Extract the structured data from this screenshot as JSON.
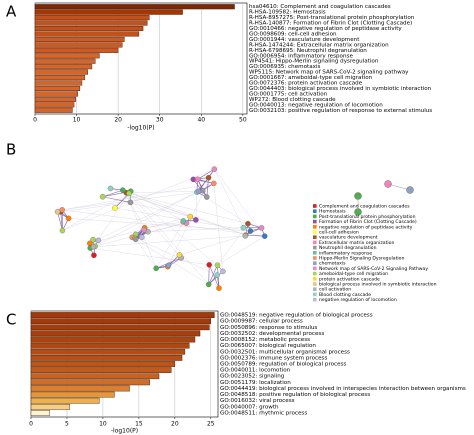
{
  "chart_data": [
    {
      "type": "bar",
      "panel_label": "A",
      "xlabel": "-log10(P)",
      "xlim": [
        0,
        51
      ],
      "xticks": [
        0,
        10,
        20,
        30,
        40,
        50
      ],
      "grid": true,
      "categories": [
        "hsa04610: Complement and coagulation cascades",
        "R-HSA-109582: Hemostasis",
        "R-HSA-8957275: Post-translational protein phosphorylation",
        "R-HSA-140877: Formation of Fibrin Clot (Clotting Cascade)",
        "GO:0010466: negative regulation of peptidase activity",
        "GO:0098609: cell-cell adhesion",
        "GO:0001944: vasculature development",
        "R-HSA-1474244: Extracellular matrix organization",
        "R-HSA-6798695: Neutrophil degranulation",
        "GO:0006954: inflammatory response",
        "WP4541: Hippo-Merlin signaling dysregulation",
        "GO:0006935: chemotaxis",
        "WP5115: Network map of SARS-CoV-2 signaling pathway",
        "GO:0001667: ameboidal-type cell migration",
        "GO:0072376: protein activation cascade",
        "GO:0044403: biological process involved in symbiotic interaction",
        "GO:0001775: cell activation",
        "WP272: Blood clotting cascade",
        "GO:0040013: negative regulation of locomotion",
        "GO:0032103: positive regulation of response to external stimulus"
      ],
      "values": [
        48,
        35.5,
        27.5,
        27,
        26,
        25,
        21.5,
        21,
        20,
        15.5,
        14.5,
        13.7,
        12.7,
        12,
        11.3,
        10.8,
        10.3,
        9.8,
        9.4,
        9
      ],
      "colors": [
        "#7f2704",
        "#a63603",
        "#c4501a",
        "#c4501a",
        "#c4501a",
        "#c4501a",
        "#cc5a22",
        "#cc5a22",
        "#cc5a22",
        "#d4662c",
        "#d4662c",
        "#d4662c",
        "#d4662c",
        "#d4662c",
        "#d4662c",
        "#d4662c",
        "#d4662c",
        "#d4662c",
        "#d4662c",
        "#d4662c"
      ]
    },
    {
      "type": "network",
      "panel_label": "B",
      "legend": [
        {
          "name": "Complement and coagulation cascades",
          "color": "#e41a1c"
        },
        {
          "name": "Hemostasis",
          "color": "#377eb8"
        },
        {
          "name": "Post-translational protein phosphorylation",
          "color": "#4daf4a"
        },
        {
          "name": "Formation of Fibrin Clot (Clotting Cascade)",
          "color": "#984ea3"
        },
        {
          "name": "negative regulation of peptidase activity",
          "color": "#ff7f00"
        },
        {
          "name": "cell-cell adhesion",
          "color": "#ffff33"
        },
        {
          "name": "vasculature development",
          "color": "#a65628"
        },
        {
          "name": "Extracellular matrix organization",
          "color": "#f781bf"
        },
        {
          "name": "Neutrophil degranulation",
          "color": "#999999"
        },
        {
          "name": "inflammatory response",
          "color": "#66c2a5"
        },
        {
          "name": "Hippo-Merlin Signaling Dysregulation",
          "color": "#fc8d62"
        },
        {
          "name": "chemotaxis",
          "color": "#8da0cb"
        },
        {
          "name": "Network map of SARS-CoV-2 Signaling Pathway",
          "color": "#e78ac3"
        },
        {
          "name": "ameboidal-type cell migration",
          "color": "#a6d854"
        },
        {
          "name": "protein activation cascade",
          "color": "#ffd92f"
        },
        {
          "name": "biological process involved in symbiotic interaction",
          "color": "#e5c494"
        },
        {
          "name": "cell activation",
          "color": "#b3b3b3"
        },
        {
          "name": "Blood clotting cascade",
          "color": "#8dd3c7"
        },
        {
          "name": "negative regulation of locomotion",
          "color": "#bebada"
        }
      ]
    },
    {
      "type": "bar",
      "panel_label": "C",
      "xlabel": "-log10(P)",
      "xlim": [
        0,
        26
      ],
      "xticks": [
        0,
        5,
        10,
        15,
        20,
        25
      ],
      "grid": true,
      "categories": [
        "GO:0048519: negative regulation of biological process",
        "GO:0009987: cellular process",
        "GO:0050896: response to stimulus",
        "GO:0032502: developmental process",
        "GO:0008152: metabolic process",
        "GO:0065007: biological regulation",
        "GO:0032501: multicellular organismal process",
        "GO:0002376: immune system process",
        "GO:0050789: regulation of biological process",
        "GO:0040011: locomotion",
        "GO:0023052: signaling",
        "GO:0051179: localization",
        "GO:0044419: biological process involved in interspecies interaction between organisms",
        "GO:0048518: positive regulation of biological process",
        "GO:0016032: viral process",
        "GO:0040007: growth",
        "GO:0048511: rhythmic process"
      ],
      "values": [
        25.5,
        25,
        24.8,
        23.5,
        22.8,
        22,
        21.4,
        21,
        20,
        19.5,
        17.8,
        16.5,
        13.7,
        11.6,
        9.5,
        5.4,
        2.6
      ],
      "colors": [
        "#a33a0a",
        "#a33a0a",
        "#a63c0c",
        "#a83f0e",
        "#ad4410",
        "#b04812",
        "#b44c14",
        "#b84f16",
        "#bd5418",
        "#c25a1c",
        "#c86222",
        "#d06c28",
        "#dc8030",
        "#e5953a",
        "#eeb04c",
        "#f6d080",
        "#fdf3d6"
      ]
    }
  ]
}
